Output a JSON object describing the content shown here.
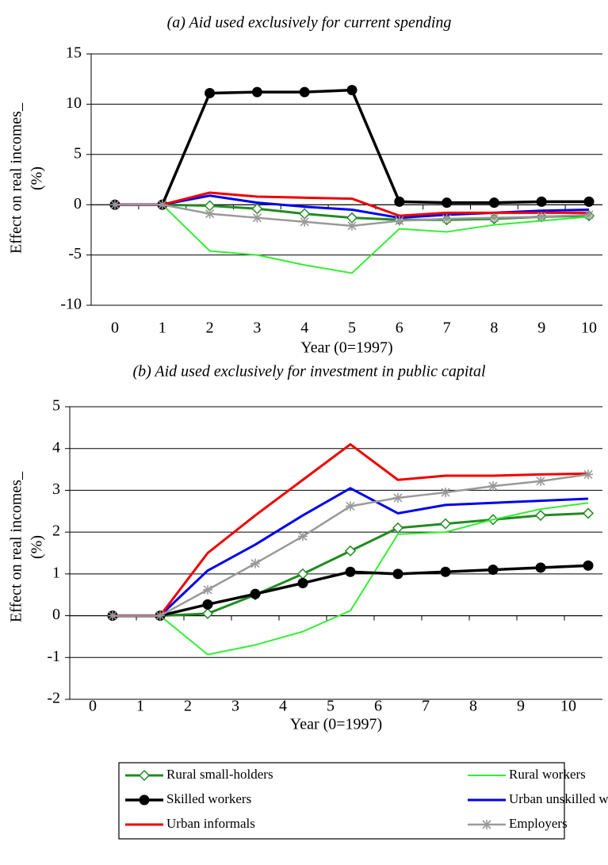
{
  "chart_data": [
    {
      "type": "line",
      "title": "(a)   Aid used exclusively for current spending",
      "xlabel": "Year (0=1997)",
      "ylabel": [
        "Effect on real incomes_",
        "(%)"
      ],
      "categories": [
        "0",
        "1",
        "2",
        "3",
        "4",
        "5",
        "6",
        "7",
        "8",
        "9",
        "10"
      ],
      "ylim": [
        -10,
        15
      ],
      "yticks": [
        -10,
        -5,
        0,
        5,
        10,
        15
      ],
      "grid": true,
      "legend": "bottom",
      "series": [
        {
          "name": "Rural small-holders",
          "color": "#228b22",
          "marker": "diamond",
          "width": 3,
          "values": [
            0,
            0,
            -0.1,
            -0.4,
            -0.9,
            -1.3,
            -1.5,
            -1.5,
            -1.4,
            -1.2,
            -1.1
          ]
        },
        {
          "name": "Rural workers",
          "color": "#33ee33",
          "marker": "none",
          "width": 2,
          "values": [
            0,
            0,
            -4.6,
            -5.0,
            -6.0,
            -6.8,
            -2.4,
            -2.7,
            -2.0,
            -1.6,
            -1.2
          ]
        },
        {
          "name": "Skilled workers",
          "color": "#000000",
          "marker": "circle",
          "width": 3.5,
          "values": [
            0,
            0,
            11.1,
            11.2,
            11.2,
            11.4,
            0.3,
            0.2,
            0.2,
            0.3,
            0.3
          ]
        },
        {
          "name": "Urban unskilled workers",
          "color": "#0000ee",
          "marker": "none",
          "width": 3,
          "values": [
            0,
            0,
            0.9,
            0.2,
            -0.2,
            -0.5,
            -1.3,
            -1.0,
            -0.8,
            -0.6,
            -0.5
          ]
        },
        {
          "name": "Urban informals",
          "color": "#ee0000",
          "marker": "none",
          "width": 3,
          "values": [
            0,
            0,
            1.2,
            0.8,
            0.7,
            0.6,
            -1.1,
            -0.8,
            -0.8,
            -0.8,
            -0.8
          ]
        },
        {
          "name": "Employers",
          "color": "#999999",
          "marker": "star",
          "width": 2.5,
          "values": [
            0,
            0,
            -0.9,
            -1.3,
            -1.7,
            -2.1,
            -1.6,
            -1.4,
            -1.3,
            -1.2,
            -1.0
          ]
        }
      ]
    },
    {
      "type": "line",
      "title": "(b) Aid used exclusively for investment in public capital",
      "xlabel": "Year (0=1997)",
      "ylabel": [
        "Effect on real incomes_",
        "(%)"
      ],
      "categories": [
        "0",
        "1",
        "2",
        "3",
        "4",
        "5",
        "6",
        "7",
        "8",
        "9",
        "10"
      ],
      "ylim": [
        -2,
        5
      ],
      "yticks": [
        -2,
        -1,
        0,
        1,
        2,
        3,
        4,
        5
      ],
      "grid": true,
      "series": [
        {
          "color": "#228b22",
          "marker": "diamond",
          "width": 3,
          "values": [
            0,
            0,
            0.05,
            0.5,
            1.0,
            1.55,
            2.1,
            2.2,
            2.3,
            2.4,
            2.45
          ]
        },
        {
          "color": "#33ee33",
          "marker": "none",
          "width": 2,
          "values": [
            0,
            0,
            -0.93,
            -0.7,
            -0.38,
            0.12,
            1.95,
            2.0,
            2.3,
            2.55,
            2.7
          ]
        },
        {
          "color": "#000000",
          "marker": "circle",
          "width": 3.5,
          "values": [
            0,
            0,
            0.27,
            0.52,
            0.78,
            1.05,
            1.0,
            1.05,
            1.1,
            1.15,
            1.2
          ]
        },
        {
          "color": "#0000ee",
          "marker": "none",
          "width": 3,
          "values": [
            0,
            0,
            1.08,
            1.7,
            2.4,
            3.05,
            2.45,
            2.65,
            2.7,
            2.75,
            2.8
          ]
        },
        {
          "color": "#ee0000",
          "marker": "none",
          "width": 3,
          "values": [
            0,
            0,
            1.5,
            2.4,
            3.25,
            4.1,
            3.25,
            3.35,
            3.35,
            3.38,
            3.4
          ]
        },
        {
          "color": "#999999",
          "marker": "star",
          "width": 2.5,
          "values": [
            0,
            0,
            0.62,
            1.25,
            1.9,
            2.62,
            2.82,
            2.95,
            3.1,
            3.22,
            3.38
          ]
        }
      ]
    }
  ]
}
